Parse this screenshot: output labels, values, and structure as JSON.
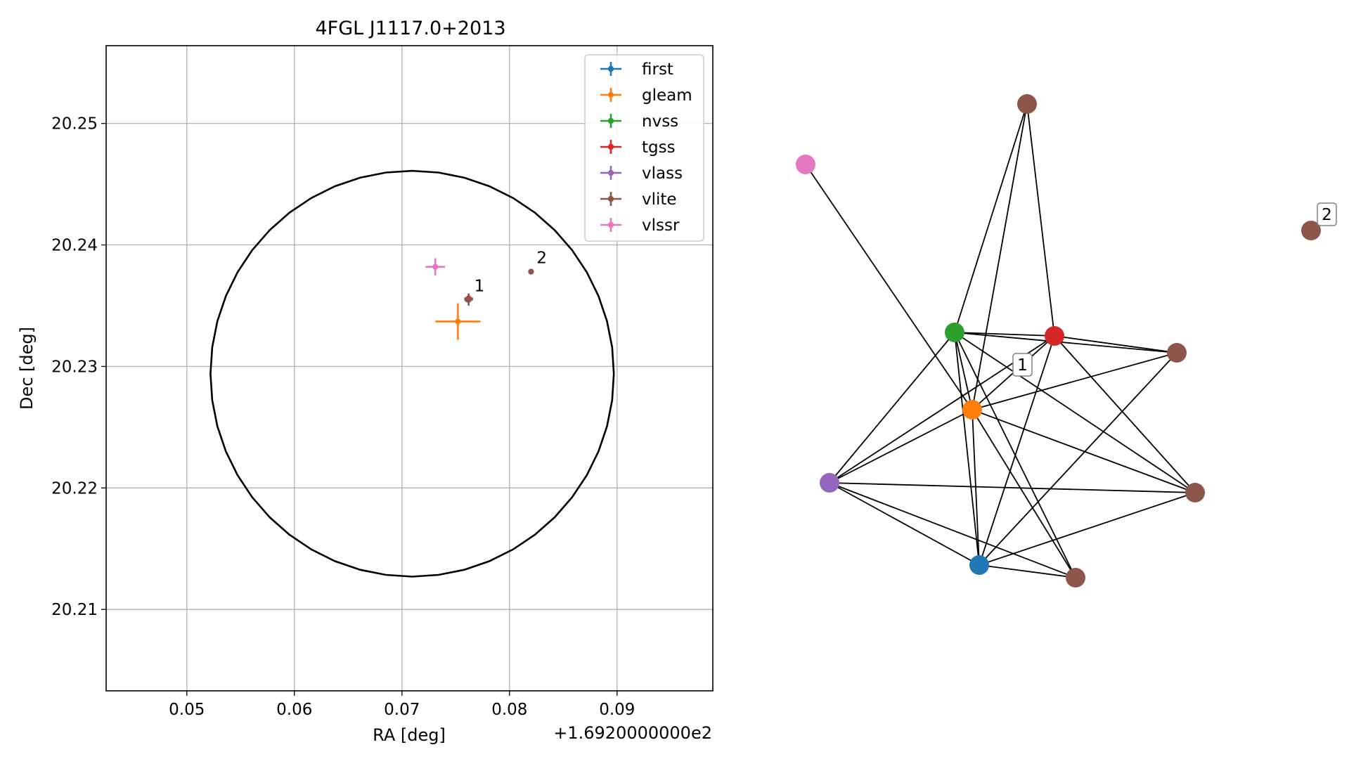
{
  "chart_data": [
    {
      "type": "scatter",
      "title": "4FGL J1117.0+2013",
      "xlabel": "RA [deg]",
      "ylabel": "Dec [deg]",
      "x_offset_label": "+1.6920000000e2",
      "xlim": [
        0.0425,
        0.0989
      ],
      "ylim": [
        20.2033,
        20.2564
      ],
      "grid": true,
      "x_ticks": [
        0.05,
        0.06,
        0.07,
        0.08,
        0.09
      ],
      "x_tick_labels": [
        "0.05",
        "0.06",
        "0.07",
        "0.08",
        "0.09"
      ],
      "y_ticks": [
        20.21,
        20.22,
        20.23,
        20.24,
        20.25
      ],
      "y_tick_labels": [
        "20.21",
        "20.22",
        "20.23",
        "20.24",
        "20.25"
      ],
      "legend_position": "upper right",
      "circle": {
        "center": [
          0.07095,
          20.2294
        ],
        "radius_x": 0.01875,
        "radius_y": 0.0167,
        "color": "#000000"
      },
      "series": [
        {
          "name": "first",
          "color": "#1f77b4",
          "x": 0.0761,
          "y": 20.2355,
          "xerr": 0.0002,
          "yerr": 0.0002
        },
        {
          "name": "gleam",
          "color": "#ff7f0e",
          "x": 0.0752,
          "y": 20.2337,
          "xerr": 0.0021,
          "yerr": 0.0015
        },
        {
          "name": "nvss",
          "color": "#2ca02c",
          "x": 0.0762,
          "y": 20.2355,
          "xerr": 0.0003,
          "yerr": 0.0003
        },
        {
          "name": "tgss",
          "color": "#d62728",
          "x": 0.0762,
          "y": 20.2356,
          "xerr": 0.0004,
          "yerr": 0.0004
        },
        {
          "name": "vlass",
          "color": "#9467bd",
          "x": 0.0762,
          "y": 20.2355,
          "xerr": 0.0001,
          "yerr": 0.0001
        },
        {
          "name": "vlite",
          "color": "#8c564b",
          "points": [
            {
              "x": 0.0762,
              "y": 20.2355,
              "xerr": 0.0004,
              "yerr": 0.0005,
              "label": "1"
            },
            {
              "x": 0.082,
              "y": 20.2378,
              "xerr": 0.0001,
              "yerr": 0.0001,
              "label": "2"
            }
          ]
        },
        {
          "name": "vlssr",
          "color": "#e377c2",
          "x": 0.0731,
          "y": 20.2382,
          "xerr": 0.0009,
          "yerr": 0.0007
        }
      ]
    },
    {
      "type": "network",
      "nodes": [
        {
          "id": "first",
          "color": "#1f77b4"
        },
        {
          "id": "gleam",
          "color": "#ff7f0e"
        },
        {
          "id": "nvss",
          "color": "#2ca02c"
        },
        {
          "id": "tgss",
          "color": "#d62728"
        },
        {
          "id": "vlass",
          "color": "#9467bd"
        },
        {
          "id": "vlssr",
          "color": "#e377c2"
        },
        {
          "id": "vlite_a",
          "color": "#8c564b"
        },
        {
          "id": "vlite_b",
          "color": "#8c564b"
        },
        {
          "id": "vlite_c",
          "color": "#8c564b"
        },
        {
          "id": "vlite_d",
          "color": "#8c564b"
        },
        {
          "id": "vlite_2",
          "color": "#8c564b"
        }
      ],
      "edges": [
        [
          "vlssr",
          "gleam"
        ],
        [
          "vlite_a",
          "nvss"
        ],
        [
          "vlite_a",
          "tgss"
        ],
        [
          "vlite_a",
          "gleam"
        ],
        [
          "nvss",
          "tgss"
        ],
        [
          "nvss",
          "vlite_b"
        ],
        [
          "nvss",
          "gleam"
        ],
        [
          "nvss",
          "vlass"
        ],
        [
          "nvss",
          "first"
        ],
        [
          "nvss",
          "vlite_d"
        ],
        [
          "nvss",
          "vlite_c"
        ],
        [
          "tgss",
          "vlite_b"
        ],
        [
          "tgss",
          "vlite_c"
        ],
        [
          "tgss",
          "vlass"
        ],
        [
          "tgss",
          "first"
        ],
        [
          "tgss",
          "gleam"
        ],
        [
          "vlite_b",
          "gleam"
        ],
        [
          "vlite_b",
          "first"
        ],
        [
          "gleam",
          "vlass"
        ],
        [
          "gleam",
          "first"
        ],
        [
          "gleam",
          "vlite_d"
        ],
        [
          "gleam",
          "vlite_c"
        ],
        [
          "vlass",
          "first"
        ],
        [
          "vlass",
          "vlite_d"
        ],
        [
          "vlass",
          "vlite_c"
        ],
        [
          "first",
          "vlite_d"
        ],
        [
          "first",
          "vlite_c"
        ]
      ],
      "cluster_labels": [
        "1",
        "2"
      ]
    }
  ]
}
